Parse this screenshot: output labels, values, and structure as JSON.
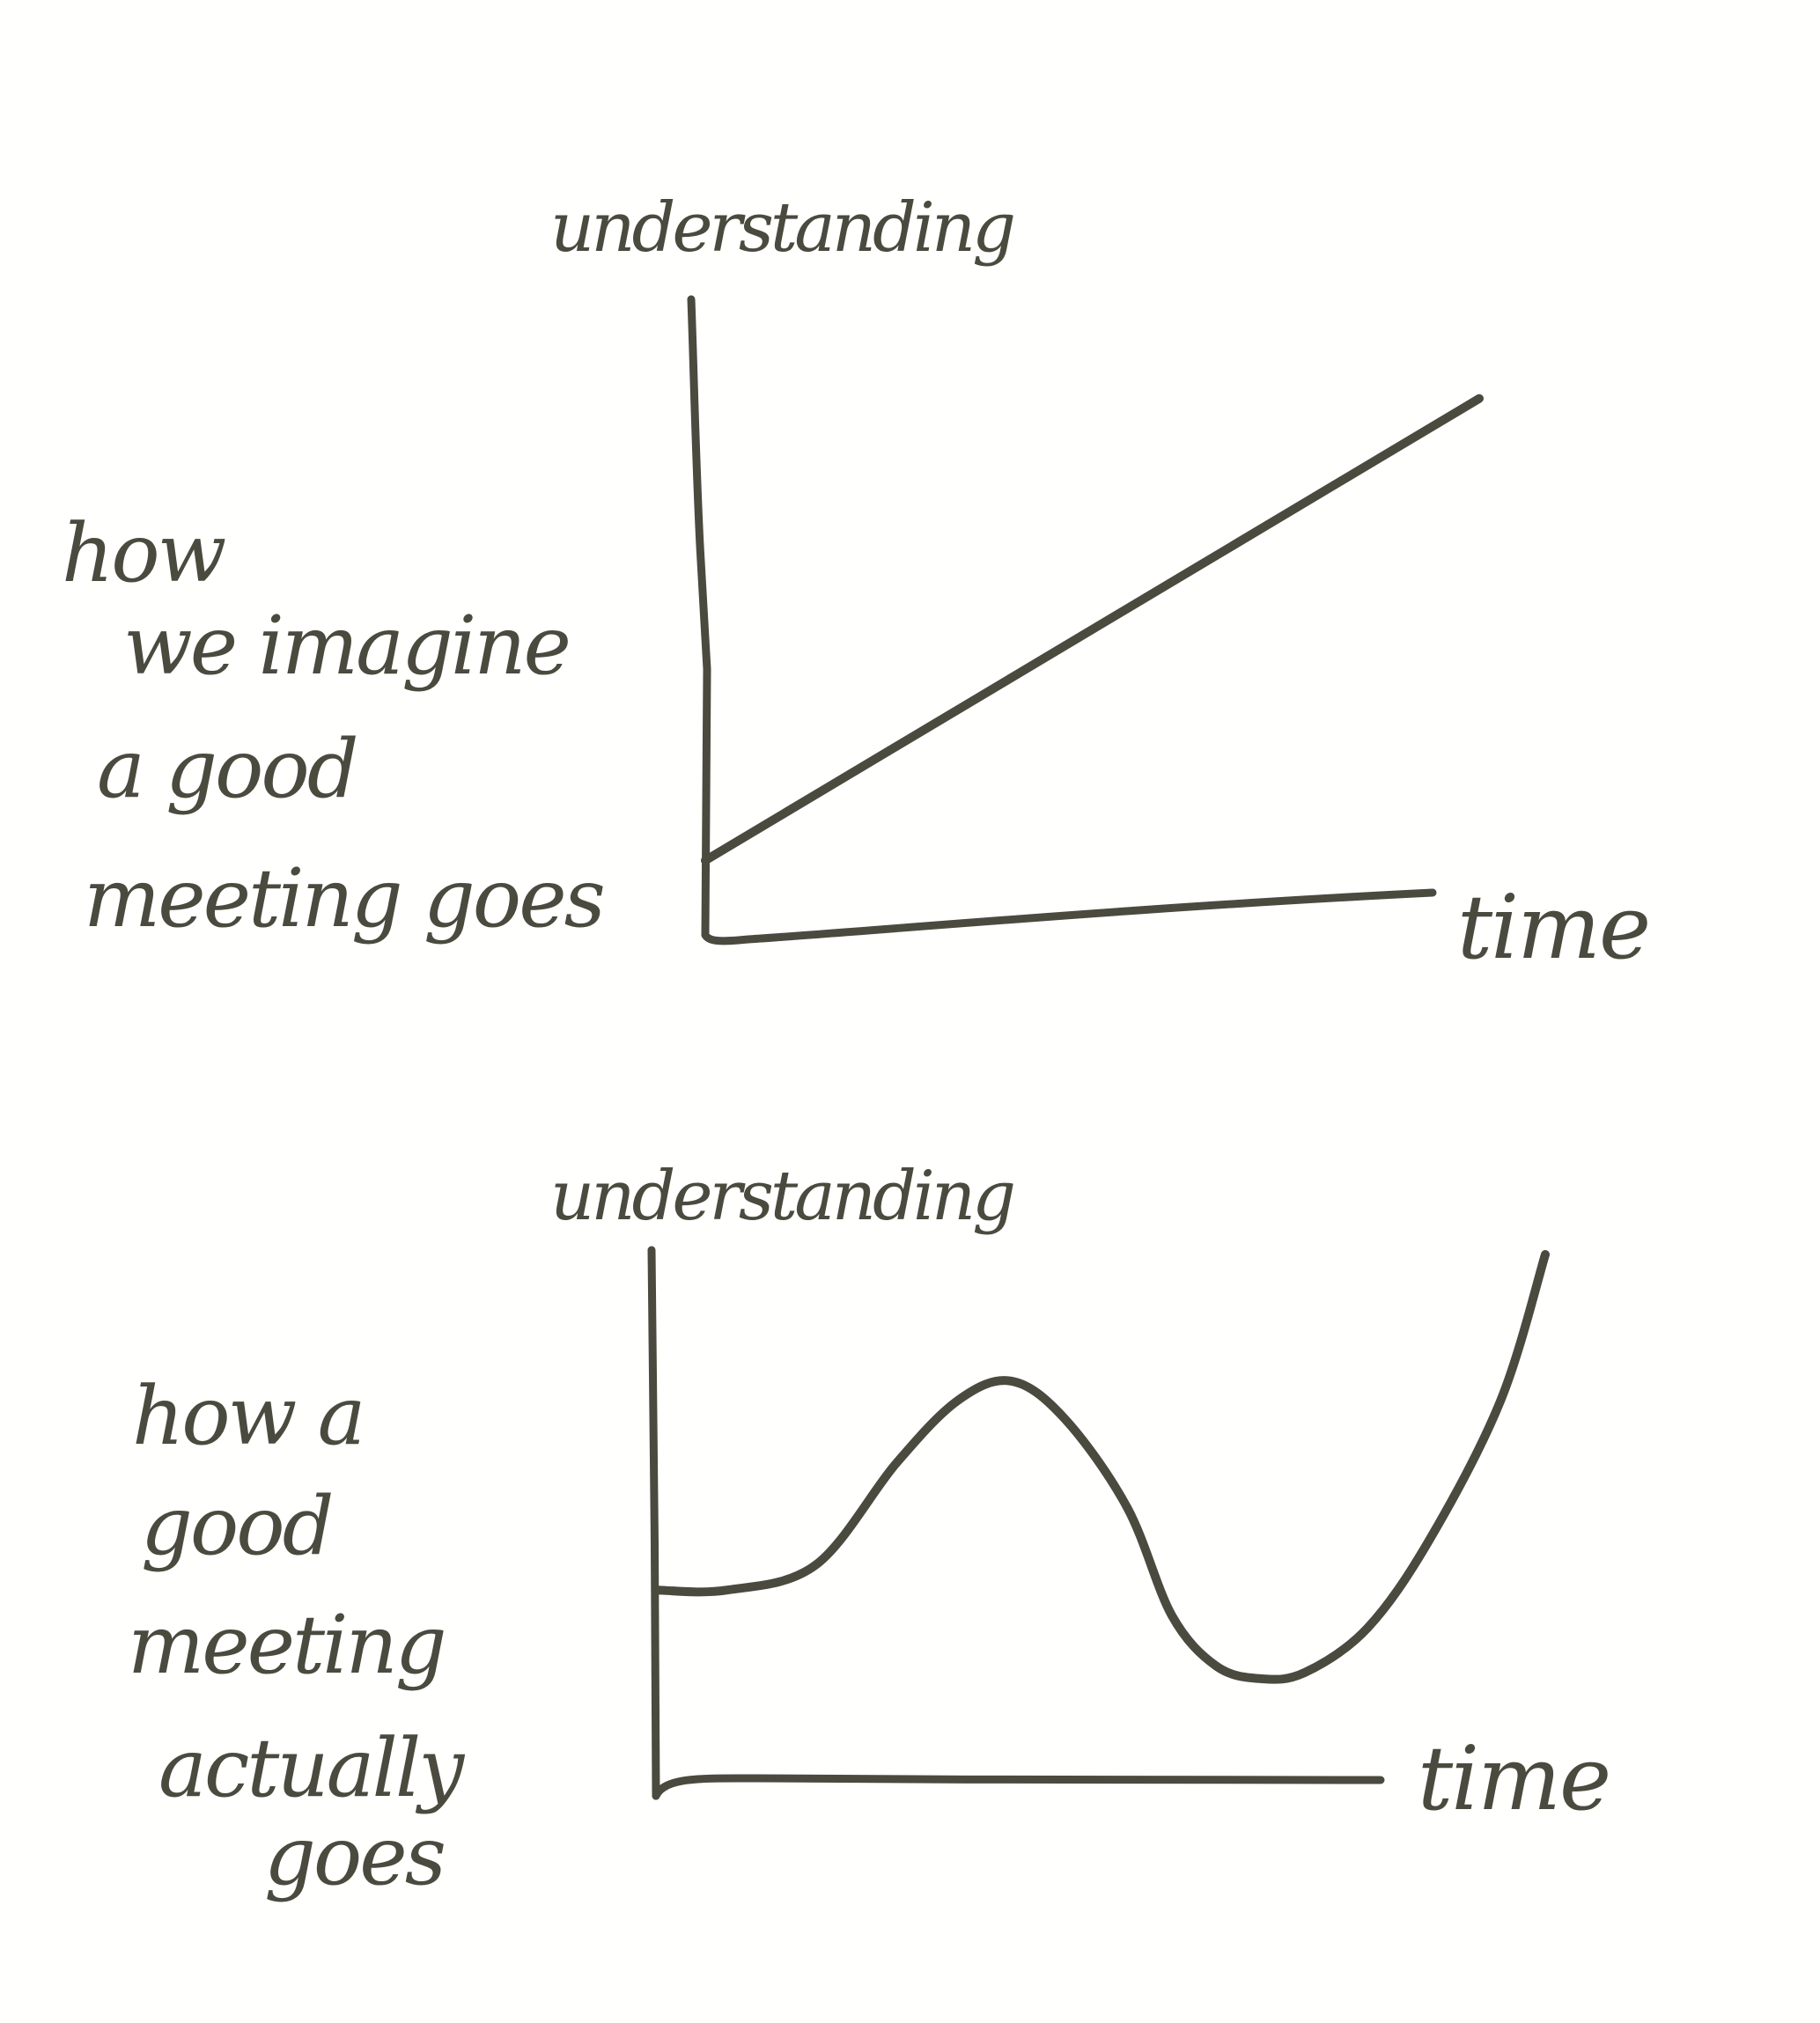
{
  "chart_data": [
    {
      "type": "line",
      "ylabel": "understanding",
      "xlabel": "time",
      "side_label_lines": [
        "how",
        "we imagine",
        "a good",
        "meeting goes"
      ],
      "grid": false,
      "series": [
        {
          "x": [
            0,
            1
          ],
          "values": [
            0.1,
            0.72
          ]
        }
      ],
      "xlim": [
        0,
        1
      ],
      "ylim": [
        0,
        0.8
      ]
    },
    {
      "type": "line",
      "ylabel": "understanding",
      "xlabel": "time",
      "side_label_lines": [
        "how a",
        "good",
        "meeting",
        "actually",
        "goes"
      ],
      "grid": false,
      "series": [
        {
          "x": [
            0,
            0.08,
            0.18,
            0.27,
            0.34,
            0.4,
            0.46,
            0.53,
            0.58,
            0.63,
            0.68,
            0.73,
            0.8,
            0.87,
            0.95,
            1.0
          ],
          "values": [
            0.3,
            0.3,
            0.34,
            0.5,
            0.6,
            0.63,
            0.57,
            0.43,
            0.26,
            0.18,
            0.16,
            0.17,
            0.24,
            0.38,
            0.6,
            0.83
          ]
        }
      ],
      "xlim": [
        0,
        1
      ],
      "ylim": [
        0,
        0.83
      ]
    }
  ],
  "style": {
    "ink_color": "#4b4a3f",
    "paper_color": "#fffffe"
  }
}
